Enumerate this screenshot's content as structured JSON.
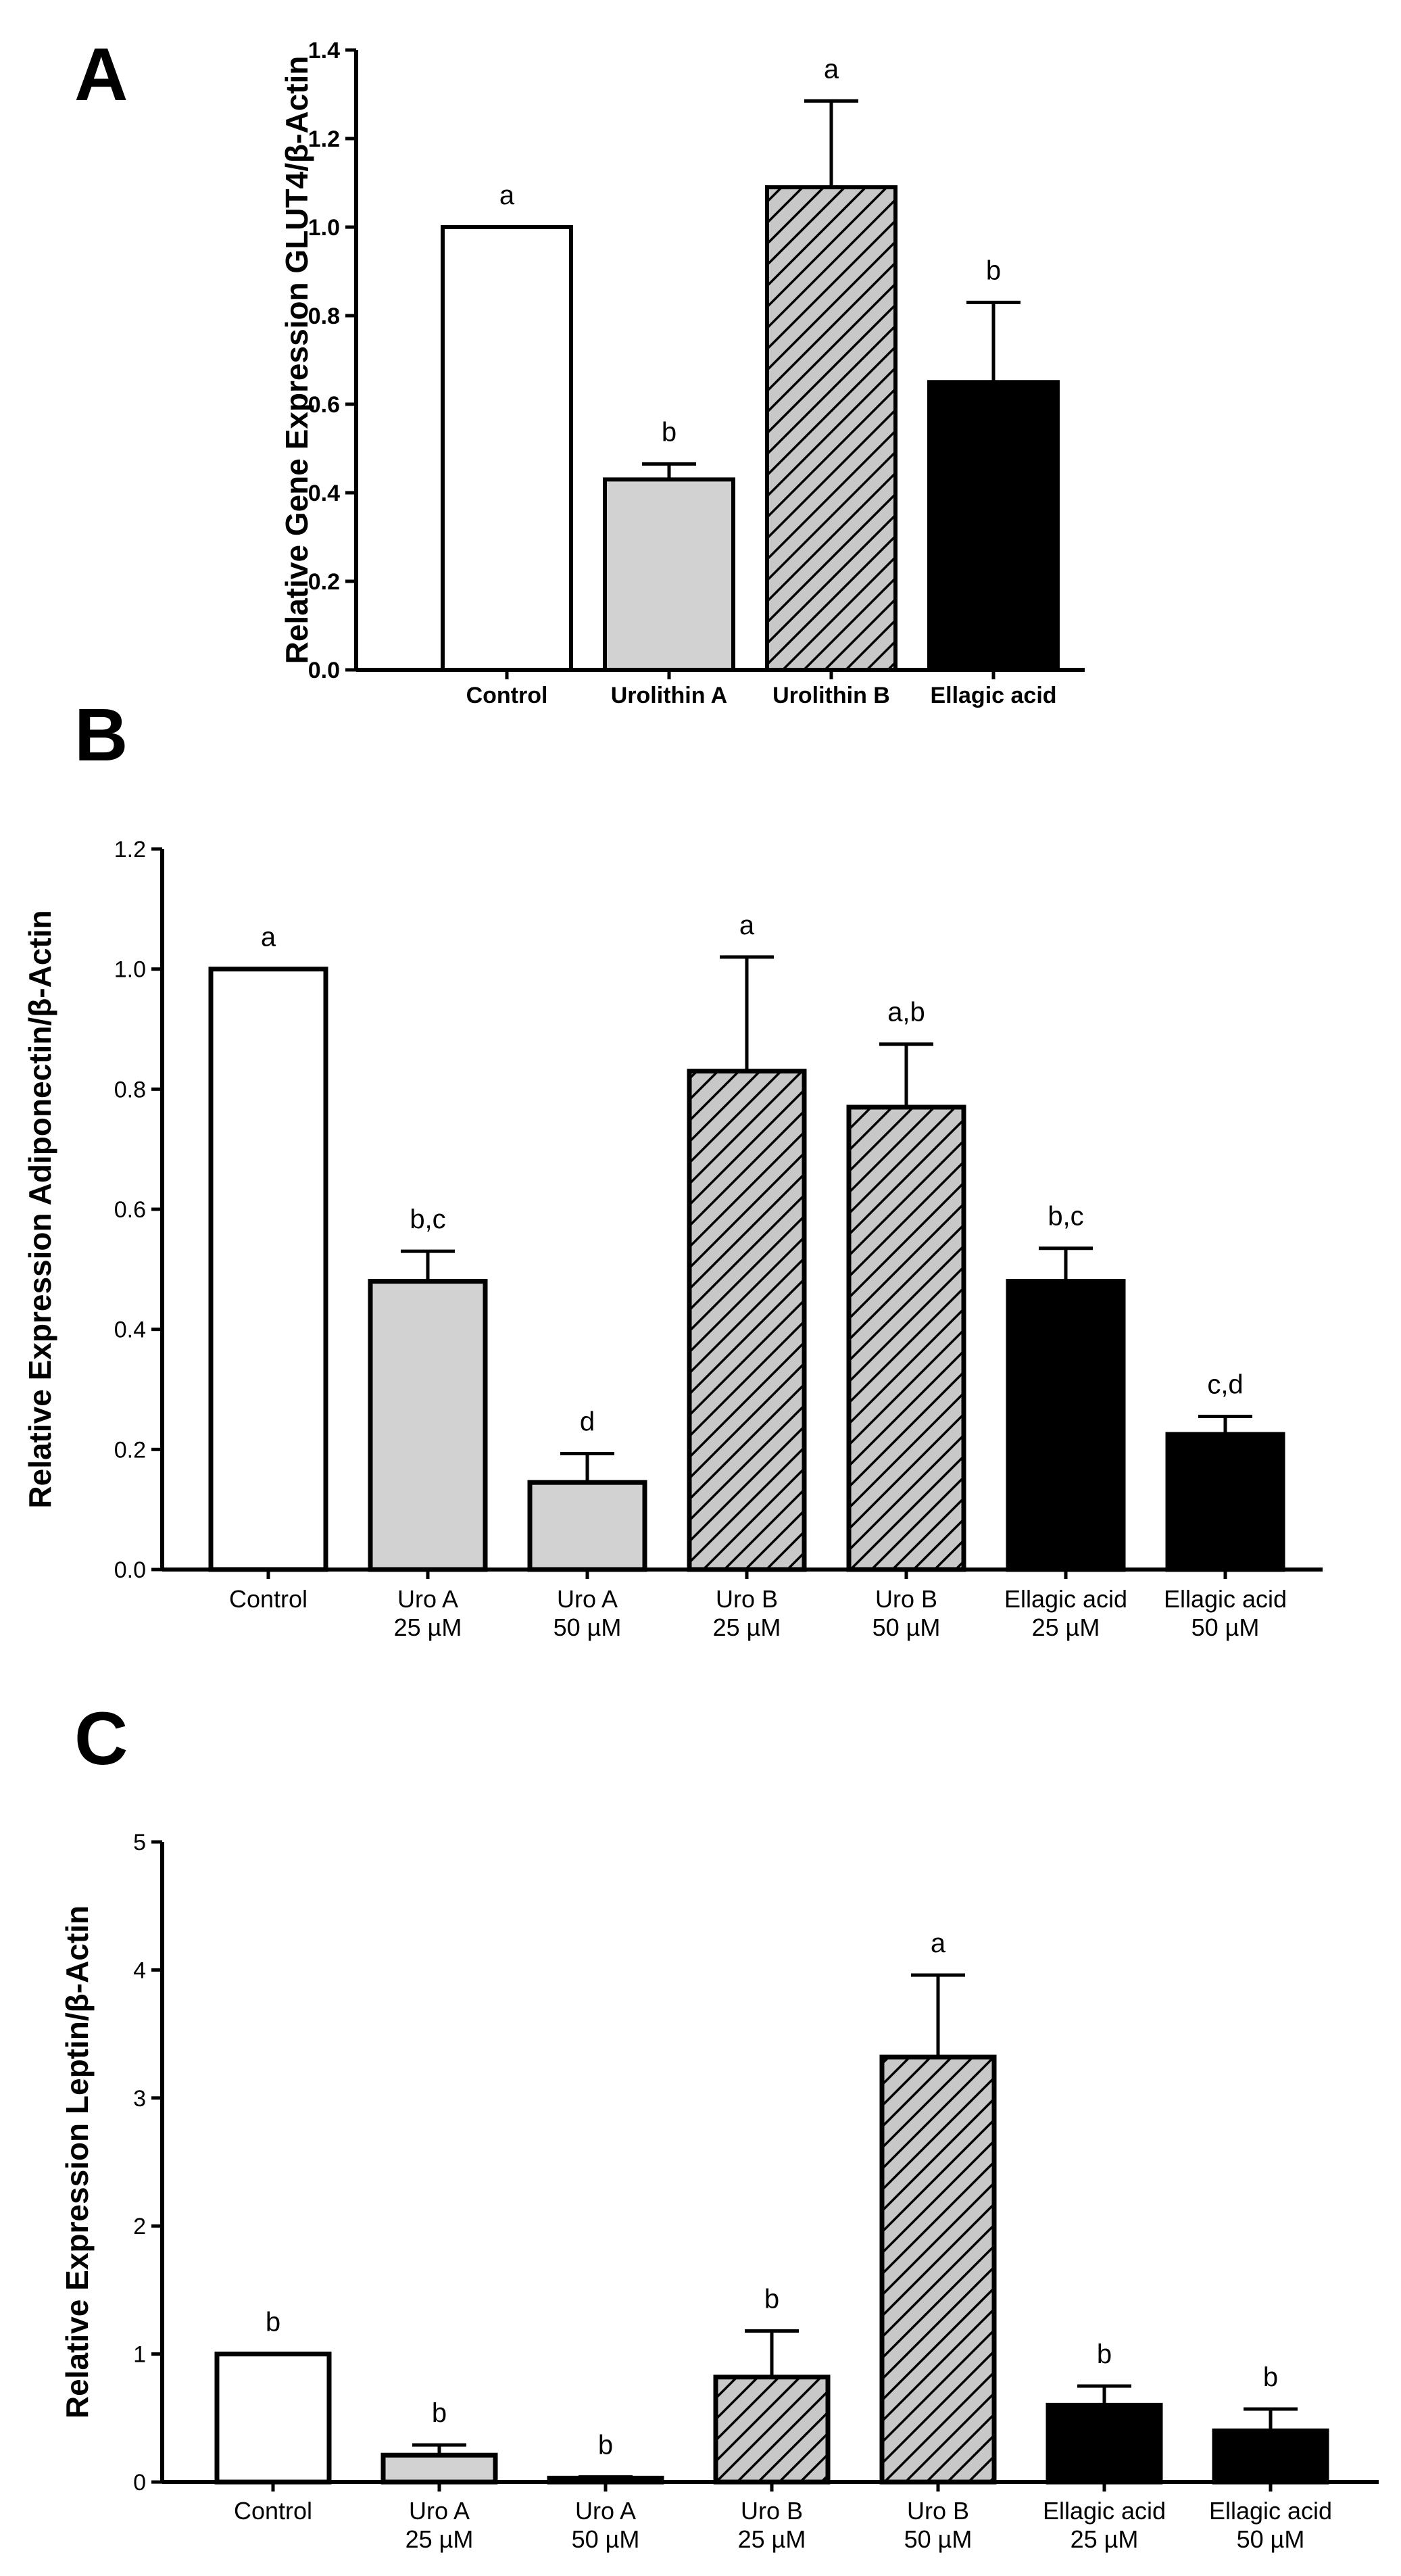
{
  "chart_data": [
    {
      "panel": "A",
      "type": "bar",
      "title": "",
      "xlabel": "",
      "ylabel": "Relative Gene Expression GLUT4/β-Actin",
      "ylim": [
        0,
        1.4
      ],
      "yticks": [
        "0.0",
        "0.2",
        "0.4",
        "0.6",
        "0.8",
        "1.0",
        "1.2",
        "1.4"
      ],
      "categories": [
        {
          "line1": "Control",
          "line2": "",
          "fill": "white",
          "value": 1.0,
          "error": 0,
          "label": "a"
        },
        {
          "line1": "Urolithin A",
          "line2": "",
          "fill": "lightgray",
          "value": 0.43,
          "error": 0.035,
          "label": "b"
        },
        {
          "line1": "Urolithin B",
          "line2": "",
          "fill": "hatch",
          "value": 1.09,
          "error": 0.195,
          "label": "a"
        },
        {
          "line1": "Ellagic acid",
          "line2": "",
          "fill": "black",
          "value": 0.65,
          "error": 0.18,
          "label": "b"
        }
      ]
    },
    {
      "panel": "B",
      "type": "bar",
      "title": "",
      "xlabel": "",
      "ylabel": "Relative Expression Adiponectin/β-Actin",
      "ylim": [
        0,
        1.2
      ],
      "yticks": [
        "0.0",
        "0.2",
        "0.4",
        "0.6",
        "0.8",
        "1.0",
        "1.2"
      ],
      "categories": [
        {
          "line1": "Control",
          "line2": "",
          "fill": "white",
          "value": 1.0,
          "error": 0,
          "label": "a"
        },
        {
          "line1": "Uro A",
          "line2": "25 µM",
          "fill": "lightgray",
          "value": 0.48,
          "error": 0.05,
          "label": "b,c"
        },
        {
          "line1": "Uro A",
          "line2": "50 µM",
          "fill": "lightgray",
          "value": 0.145,
          "error": 0.048,
          "label": "d"
        },
        {
          "line1": "Uro B",
          "line2": "25 µM",
          "fill": "hatch",
          "value": 0.83,
          "error": 0.19,
          "label": "a"
        },
        {
          "line1": "Uro B",
          "line2": "50 µM",
          "fill": "hatch",
          "value": 0.77,
          "error": 0.105,
          "label": "a,b"
        },
        {
          "line1": "Ellagic acid",
          "line2": "25 µM",
          "fill": "black",
          "value": 0.48,
          "error": 0.055,
          "label": "b,c"
        },
        {
          "line1": "Ellagic acid",
          "line2": "50 µM",
          "fill": "black",
          "value": 0.225,
          "error": 0.03,
          "label": "c,d"
        }
      ]
    },
    {
      "panel": "C",
      "type": "bar",
      "title": "",
      "xlabel": "",
      "ylabel": "Relative Expression Leptin/β-Actin",
      "ylim": [
        0,
        5
      ],
      "yticks": [
        "0",
        "1",
        "2",
        "3",
        "4",
        "5"
      ],
      "categories": [
        {
          "line1": "Control",
          "line2": "",
          "fill": "white",
          "value": 1.0,
          "error": 0,
          "label": "b"
        },
        {
          "line1": "Uro A",
          "line2": "25 µM",
          "fill": "lightgray",
          "value": 0.21,
          "error": 0.08,
          "label": "b"
        },
        {
          "line1": "Uro A",
          "line2": "50 µM",
          "fill": "lightgray",
          "value": 0.03,
          "error": 0.01,
          "label": "b"
        },
        {
          "line1": "Uro B",
          "line2": "25 µM",
          "fill": "hatch",
          "value": 0.82,
          "error": 0.36,
          "label": "b"
        },
        {
          "line1": "Uro B",
          "line2": "50 µM",
          "fill": "hatch",
          "value": 3.32,
          "error": 0.64,
          "label": "a"
        },
        {
          "line1": "Ellagic acid",
          "line2": "25 µM",
          "fill": "black",
          "value": 0.6,
          "error": 0.15,
          "label": "b"
        },
        {
          "line1": "Ellagic acid",
          "line2": "50 µM",
          "fill": "black",
          "value": 0.4,
          "error": 0.17,
          "label": "b"
        }
      ]
    }
  ],
  "colors": {
    "axis": "#000000",
    "bar_stroke": "#000000",
    "white": "#ffffff",
    "lightgray": "#d2d2d2",
    "hatch_bg": "#c8c8c8",
    "black": "#000000"
  }
}
